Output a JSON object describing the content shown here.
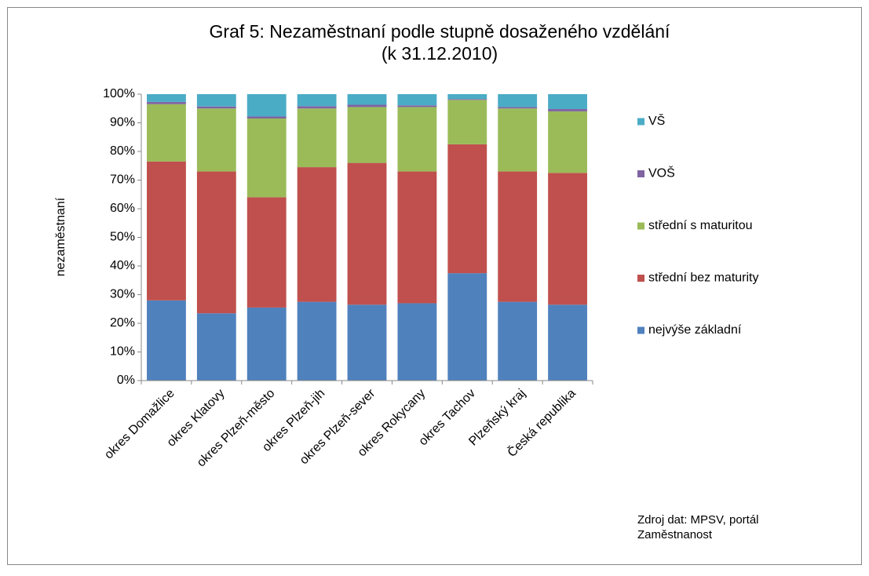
{
  "chart_data": {
    "type": "stacked_bar",
    "title": "Graf 5: Nezaměstnaní podle stupně dosaženého vzdělání",
    "subtitle": "(k 31.12.2010)",
    "y_label": "nezaměstnaní",
    "categories": [
      "okres Domažlice",
      "okres Klatovy",
      "okres Plzeň-město",
      "okres Plzeň-jih",
      "okres Plzeň-sever",
      "okres Rokycany",
      "okres Tachov",
      "Plzeňský kraj",
      "Česká republika"
    ],
    "series": [
      {
        "name": "nejvýše základní",
        "color": "#4f81bd",
        "values": [
          28,
          23.5,
          25.5,
          27.5,
          26.5,
          27,
          37.5,
          27.5,
          26.5
        ]
      },
      {
        "name": "střední bez maturity",
        "color": "#c0504d",
        "values": [
          48.5,
          49.5,
          38.5,
          47,
          49.5,
          46,
          45,
          45.5,
          46
        ]
      },
      {
        "name": "střední s maturitou",
        "color": "#9bbb59",
        "values": [
          20,
          22,
          27.5,
          20.5,
          19.5,
          22.5,
          15.5,
          22,
          21.5
        ]
      },
      {
        "name": "VOŠ",
        "color": "#8064a2",
        "values": [
          0.8,
          0.7,
          0.7,
          0.8,
          0.8,
          0.6,
          0.3,
          0.5,
          0.8
        ]
      },
      {
        "name": "VŠ",
        "color": "#4bacc6",
        "values": [
          2.7,
          4.3,
          7.8,
          4.2,
          3.7,
          3.9,
          1.7,
          4.5,
          5.2
        ]
      }
    ],
    "ylim": [
      0,
      100
    ],
    "yticks": [
      {
        "value": 0,
        "label": "0%"
      },
      {
        "value": 10,
        "label": "10%"
      },
      {
        "value": 20,
        "label": "20%"
      },
      {
        "value": 30,
        "label": "30%"
      },
      {
        "value": 40,
        "label": "40%"
      },
      {
        "value": 50,
        "label": "50%"
      },
      {
        "value": 60,
        "label": "60%"
      },
      {
        "value": 70,
        "label": "70%"
      },
      {
        "value": 80,
        "label": "80%"
      },
      {
        "value": 90,
        "label": "90%"
      },
      {
        "value": 100,
        "label": "100%"
      }
    ],
    "legend": "right",
    "source": [
      "Zdroj dat:  MPSV, portál",
      "Zaměstnanost"
    ]
  }
}
